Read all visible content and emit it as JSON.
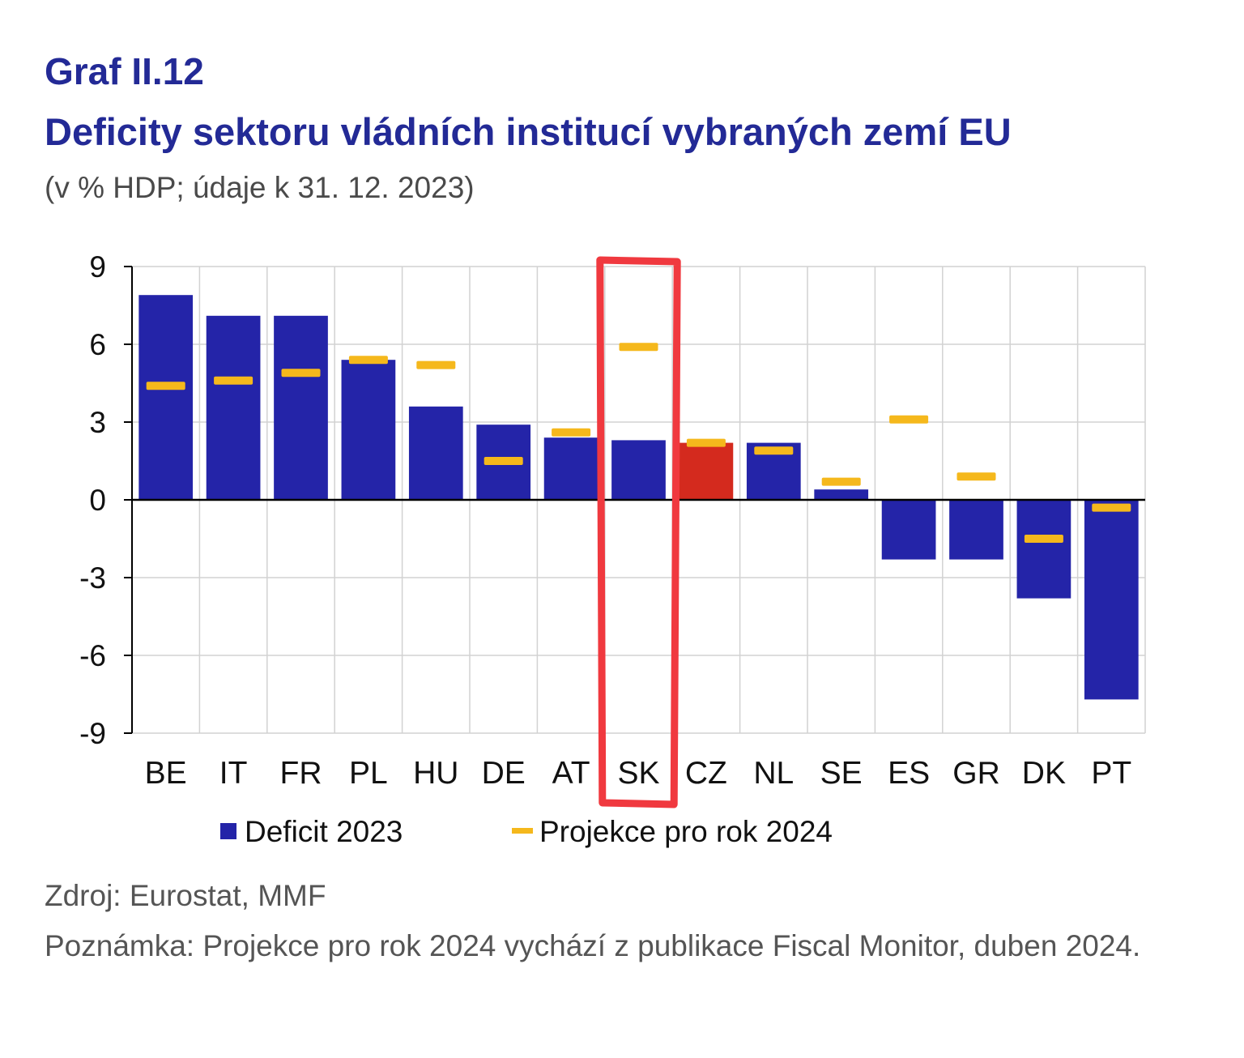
{
  "figure": {
    "label": "Graf II.12",
    "title": "Deficity sektoru vládních institucí vybraných zemí EU",
    "subtitle": "(v % HDP; údaje k 31. 12. 2023)",
    "source": "Zdroj: Eurostat, MMF",
    "note": "Poznámka: Projekce pro rok 2024 vychází z publikace Fiscal Monitor, duben 2024."
  },
  "colors": {
    "bar": "#2424a8",
    "bar_highlight": "#d42a1e",
    "projection": "#f5b81c",
    "annotation": "#f0393f",
    "grid": "#d2d2d2"
  },
  "chart_data": {
    "type": "bar",
    "categories": [
      "BE",
      "IT",
      "FR",
      "PL",
      "HU",
      "DE",
      "AT",
      "SK",
      "CZ",
      "NL",
      "SE",
      "ES",
      "GR",
      "DK",
      "PT"
    ],
    "series": [
      {
        "name": "Deficit 2023",
        "kind": "bar",
        "values": [
          7.9,
          7.1,
          7.1,
          5.4,
          3.6,
          2.9,
          2.4,
          2.3,
          2.2,
          2.2,
          0.4,
          -2.3,
          -2.3,
          -3.8,
          -7.7
        ]
      },
      {
        "name": "Projekce pro rok 2024",
        "kind": "marker",
        "values": [
          4.4,
          4.6,
          4.9,
          5.4,
          5.2,
          1.5,
          2.6,
          5.9,
          2.2,
          1.9,
          0.7,
          3.1,
          0.9,
          -1.5,
          -0.3
        ]
      }
    ],
    "highlighted_category": "CZ",
    "annotated_category": "SK",
    "ylim": [
      -9,
      9
    ],
    "yticks": [
      9,
      6,
      3,
      0,
      -3,
      -6,
      -9
    ],
    "grid": true,
    "legend": "bottom-center"
  }
}
